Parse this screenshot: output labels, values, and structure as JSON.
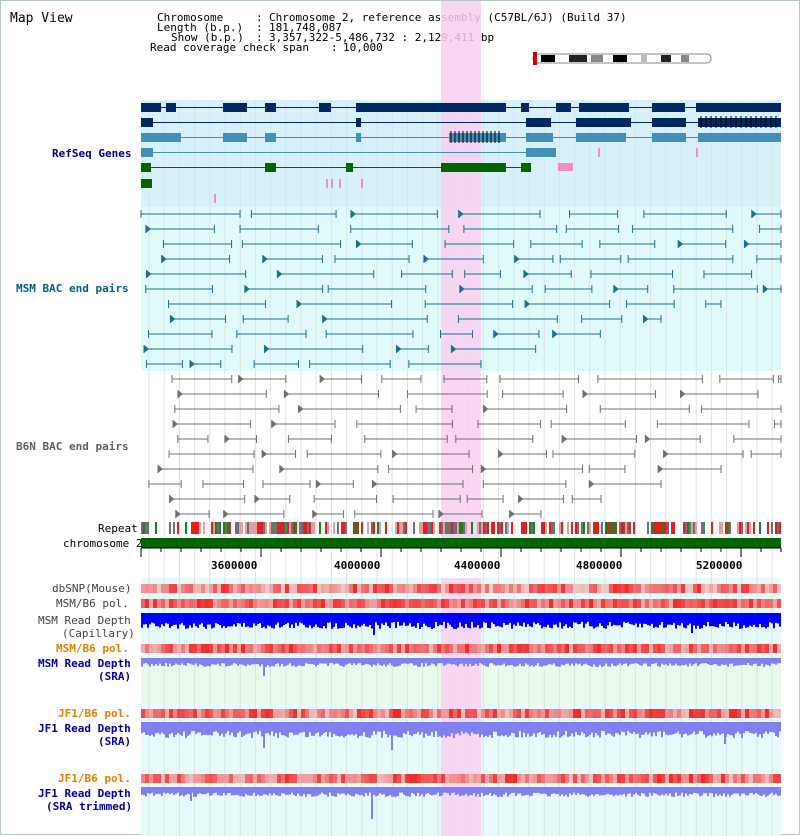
{
  "view_title": "Map View",
  "header": {
    "chromosome_label": "Chromosome",
    "chromosome_value": "Chromosome 2, reference assembly (C57BL/6J) (Build 37)",
    "length_label": "Length (b.p.)",
    "length_value": "181,748,087",
    "show_label": "Show (b.p.)",
    "show_value": "3,357,322-5,486,732 : 2,129,411 bp",
    "coverage_label": "Read coverage check span",
    "coverage_value": "10,000"
  },
  "tracks": {
    "refseq": {
      "label": "RefSeq Genes",
      "color": "#000080"
    },
    "msm_bac": {
      "label": "MSM BAC end pairs",
      "color": "#006080"
    },
    "b6n_bac": {
      "label": "B6N BAC end pairs",
      "color": "#606060"
    },
    "repeat": {
      "label": "Repeat"
    },
    "chromosome": {
      "label": "chromosome 2"
    },
    "dbsnp": {
      "label": "dbSNP(Mouse)"
    },
    "msm_b6_pol": {
      "label": "MSM/B6 pol."
    },
    "msm_depth_cap_line1": {
      "label": "MSM Read Depth"
    },
    "msm_depth_cap_line2": {
      "label": "(Capillary)"
    },
    "msm_b6_pol2": {
      "label": "MSM/B6 pol.",
      "color": "#e08000"
    },
    "msm_depth_sra_line1": {
      "label": "MSM Read Depth",
      "color": "#0000a0"
    },
    "msm_depth_sra_line2": {
      "label": "(SRA)"
    },
    "jf1_b6_pol": {
      "label": "JF1/B6 pol.",
      "color": "#e08000"
    },
    "jf1_depth_sra_line1": {
      "label": "JF1 Read Depth",
      "color": "#0000a0"
    },
    "jf1_depth_sra_line2": {
      "label": "(SRA)"
    },
    "jf1_b6_pol2": {
      "label": "JF1/B6 pol.",
      "color": "#e08000"
    },
    "jf1_depth_trim_line1": {
      "label": "JF1 Read Depth",
      "color": "#0000a0"
    },
    "jf1_depth_trim_line2": {
      "label": "(SRA trimmed)"
    }
  },
  "axis": {
    "ticks": [
      "3600000",
      "4000000",
      "4400000",
      "4800000",
      "5200000"
    ]
  },
  "colors": {
    "highlight": "#f8d0f0",
    "refseq_bg": "#d8f0fa",
    "msm_bg": "#e0fafa",
    "gene_dark": "#002860",
    "gene_mid": "#4090b8",
    "gene_green": "#006400",
    "gene_pink": "#f090c0",
    "chromosome_bar": "#006400",
    "depth_blue": "#0000ff",
    "depth_light": "#8080f0"
  }
}
